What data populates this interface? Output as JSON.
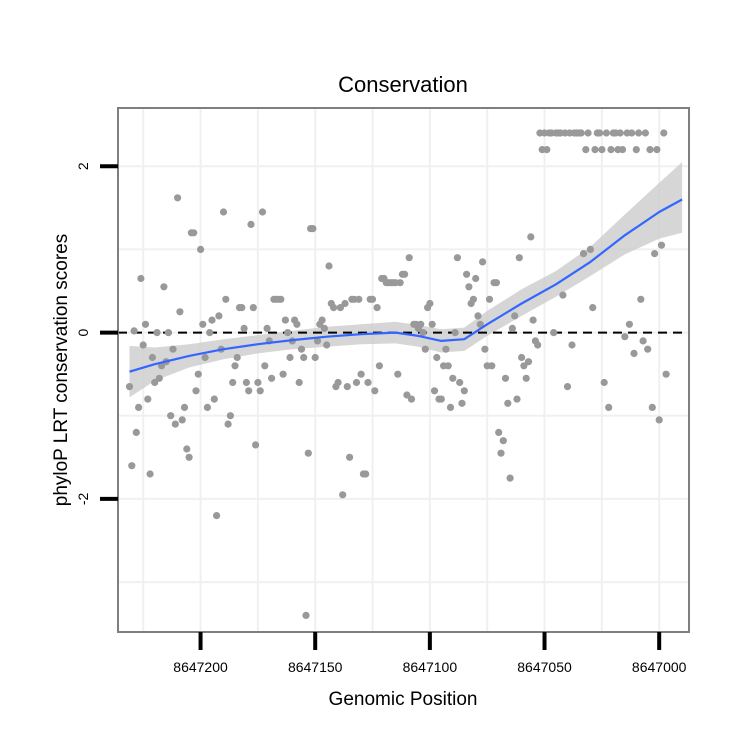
{
  "chart_data": {
    "type": "scatter",
    "title": "Conservation",
    "xlabel": "Genomic Position",
    "ylabel": "phyloP LRT conservation scores",
    "x_reversed": true,
    "xlim": [
      8647236,
      8646987
    ],
    "ylim": [
      -3.6,
      2.7
    ],
    "x_ticks": [
      8647200,
      8647150,
      8647100,
      8647050,
      8647000
    ],
    "x_tick_labels": [
      "8647200",
      "8647150",
      "8647100",
      "8647050",
      "8647000"
    ],
    "y_ticks": [
      2,
      0,
      -2
    ],
    "y_tick_labels": [
      "2",
      "0",
      "-2"
    ],
    "hline": 0,
    "colors": {
      "points": "#999999",
      "smooth": "#3366ff",
      "ribbon": "#cccccc",
      "panel_border": "#7f7f7f",
      "grid": "#f0f0f0"
    },
    "series": [
      {
        "name": "scores",
        "points": [
          [
            8647231,
            -0.65
          ],
          [
            8647230,
            -1.6
          ],
          [
            8647229,
            0.02
          ],
          [
            8647228,
            -1.2
          ],
          [
            8647227,
            -0.9
          ],
          [
            8647226,
            0.65
          ],
          [
            8647225,
            -0.15
          ],
          [
            8647224,
            0.1
          ],
          [
            8647223,
            -0.8
          ],
          [
            8647222,
            -1.7
          ],
          [
            8647221,
            -0.3
          ],
          [
            8647220,
            -0.6
          ],
          [
            8647219,
            0.0
          ],
          [
            8647218,
            -0.55
          ],
          [
            8647217,
            -0.4
          ],
          [
            8647216,
            0.55
          ],
          [
            8647215,
            -0.35
          ],
          [
            8647214,
            0.0
          ],
          [
            8647213,
            -1.0
          ],
          [
            8647212,
            -0.2
          ],
          [
            8647211,
            -1.1
          ],
          [
            8647210,
            1.62
          ],
          [
            8647209,
            0.25
          ],
          [
            8647208,
            -1.05
          ],
          [
            8647207,
            -0.9
          ],
          [
            8647206,
            -1.4
          ],
          [
            8647205,
            -1.5
          ],
          [
            8647204,
            1.2
          ],
          [
            8647203,
            1.2
          ],
          [
            8647202,
            -0.7
          ],
          [
            8647201,
            -0.5
          ],
          [
            8647200,
            1.0
          ],
          [
            8647199,
            0.1
          ],
          [
            8647198,
            -0.3
          ],
          [
            8647197,
            -0.9
          ],
          [
            8647196,
            0.0
          ],
          [
            8647195,
            0.15
          ],
          [
            8647194,
            -0.8
          ],
          [
            8647193,
            -2.2
          ],
          [
            8647192,
            0.2
          ],
          [
            8647191,
            -0.2
          ],
          [
            8647190,
            1.45
          ],
          [
            8647189,
            0.4
          ],
          [
            8647188,
            -1.1
          ],
          [
            8647187,
            -1.0
          ],
          [
            8647186,
            -0.6
          ],
          [
            8647185,
            -0.4
          ],
          [
            8647184,
            -0.3
          ],
          [
            8647183,
            0.3
          ],
          [
            8647182,
            0.3
          ],
          [
            8647181,
            0.05
          ],
          [
            8647180,
            -0.6
          ],
          [
            8647179,
            -0.7
          ],
          [
            8647178,
            1.3
          ],
          [
            8647177,
            0.3
          ],
          [
            8647176,
            -1.35
          ],
          [
            8647175,
            -0.6
          ],
          [
            8647174,
            -0.7
          ],
          [
            8647173,
            1.45
          ],
          [
            8647172,
            -0.4
          ],
          [
            8647171,
            0.05
          ],
          [
            8647170,
            -0.1
          ],
          [
            8647169,
            -0.55
          ],
          [
            8647168,
            0.4
          ],
          [
            8647167,
            0.4
          ],
          [
            8647166,
            0.4
          ],
          [
            8647165,
            0.4
          ],
          [
            8647164,
            -0.5
          ],
          [
            8647163,
            0.15
          ],
          [
            8647162,
            0.0
          ],
          [
            8647161,
            -0.3
          ],
          [
            8647160,
            -0.1
          ],
          [
            8647159,
            0.15
          ],
          [
            8647158,
            0.1
          ],
          [
            8647157,
            -0.6
          ],
          [
            8647156,
            -0.2
          ],
          [
            8647155,
            -0.3
          ],
          [
            8647154,
            -3.4
          ],
          [
            8647153,
            -1.45
          ],
          [
            8647152,
            1.25
          ],
          [
            8647151,
            1.25
          ],
          [
            8647150,
            -0.3
          ],
          [
            8647149,
            -0.1
          ],
          [
            8647148,
            0.1
          ],
          [
            8647147,
            0.15
          ],
          [
            8647146,
            0.05
          ],
          [
            8647145,
            -0.15
          ],
          [
            8647144,
            0.8
          ],
          [
            8647143,
            0.35
          ],
          [
            8647142,
            0.3
          ],
          [
            8647141,
            -0.65
          ],
          [
            8647140,
            -0.6
          ],
          [
            8647139,
            0.3
          ],
          [
            8647138,
            -1.95
          ],
          [
            8647137,
            0.35
          ],
          [
            8647136,
            -0.65
          ],
          [
            8647135,
            -1.5
          ],
          [
            8647134,
            0.4
          ],
          [
            8647133,
            0.4
          ],
          [
            8647132,
            -0.6
          ],
          [
            8647131,
            0.4
          ],
          [
            8647130,
            -0.5
          ],
          [
            8647129,
            -1.7
          ],
          [
            8647128,
            -1.7
          ],
          [
            8647127,
            -0.6
          ],
          [
            8647126,
            0.4
          ],
          [
            8647125,
            0.4
          ],
          [
            8647124,
            -0.7
          ],
          [
            8647123,
            0.3
          ],
          [
            8647122,
            -0.4
          ],
          [
            8647121,
            0.65
          ],
          [
            8647120,
            0.65
          ],
          [
            8647119,
            0.6
          ],
          [
            8647118,
            0.6
          ],
          [
            8647117,
            0.6
          ],
          [
            8647116,
            0.6
          ],
          [
            8647115,
            0.6
          ],
          [
            8647114,
            -0.5
          ],
          [
            8647113,
            0.6
          ],
          [
            8647112,
            0.7
          ],
          [
            8647111,
            0.7
          ],
          [
            8647110,
            -0.75
          ],
          [
            8647109,
            0.9
          ],
          [
            8647108,
            -0.8
          ],
          [
            8647107,
            0.1
          ],
          [
            8647106,
            0.1
          ],
          [
            8647105,
            0.05
          ],
          [
            8647104,
            0.1
          ],
          [
            8647103,
            0.0
          ],
          [
            8647102,
            -0.2
          ],
          [
            8647101,
            0.3
          ],
          [
            8647100,
            0.35
          ],
          [
            8647099,
            0.1
          ],
          [
            8647098,
            -0.7
          ],
          [
            8647097,
            -0.3
          ],
          [
            8647096,
            -0.8
          ],
          [
            8647095,
            -0.8
          ],
          [
            8647094,
            -0.4
          ],
          [
            8647093,
            -0.2
          ],
          [
            8647092,
            -0.4
          ],
          [
            8647091,
            -0.9
          ],
          [
            8647090,
            -0.55
          ],
          [
            8647089,
            0.0
          ],
          [
            8647088,
            0.9
          ],
          [
            8647087,
            -0.6
          ],
          [
            8647086,
            -0.85
          ],
          [
            8647085,
            -0.7
          ],
          [
            8647084,
            0.7
          ],
          [
            8647083,
            0.55
          ],
          [
            8647082,
            0.35
          ],
          [
            8647081,
            0.4
          ],
          [
            8647080,
            0.65
          ],
          [
            8647079,
            0.2
          ],
          [
            8647078,
            0.1
          ],
          [
            8647077,
            0.85
          ],
          [
            8647076,
            -0.2
          ],
          [
            8647075,
            -0.4
          ],
          [
            8647074,
            0.4
          ],
          [
            8647073,
            -0.4
          ],
          [
            8647072,
            0.6
          ],
          [
            8647071,
            0.6
          ],
          [
            8647070,
            -1.2
          ],
          [
            8647069,
            -1.45
          ],
          [
            8647068,
            -1.3
          ],
          [
            8647067,
            -0.55
          ],
          [
            8647066,
            -0.85
          ],
          [
            8647065,
            -1.75
          ],
          [
            8647064,
            0.05
          ],
          [
            8647063,
            0.2
          ],
          [
            8647062,
            -0.8
          ],
          [
            8647061,
            0.9
          ],
          [
            8647060,
            -0.3
          ],
          [
            8647059,
            -0.4
          ],
          [
            8647058,
            -0.55
          ],
          [
            8647057,
            -0.35
          ],
          [
            8647056,
            1.15
          ],
          [
            8647055,
            0.15
          ],
          [
            8647054,
            -0.1
          ],
          [
            8647053,
            -0.15
          ],
          [
            8647052,
            2.4
          ],
          [
            8647051,
            2.2
          ],
          [
            8647050,
            2.4
          ],
          [
            8647049,
            2.2
          ],
          [
            8647048,
            2.4
          ],
          [
            8647047,
            2.4
          ],
          [
            8647046,
            0.0
          ],
          [
            8647045,
            2.4
          ],
          [
            8647044,
            2.4
          ],
          [
            8647043,
            2.4
          ],
          [
            8647042,
            0.45
          ],
          [
            8647041,
            2.4
          ],
          [
            8647040,
            -0.65
          ],
          [
            8647039,
            2.4
          ],
          [
            8647038,
            -0.15
          ],
          [
            8647037,
            2.4
          ],
          [
            8647036,
            2.4
          ],
          [
            8647035,
            2.4
          ],
          [
            8647034,
            2.4
          ],
          [
            8647033,
            0.95
          ],
          [
            8647032,
            2.2
          ],
          [
            8647031,
            2.4
          ],
          [
            8647030,
            1.0
          ],
          [
            8647029,
            0.3
          ],
          [
            8647028,
            2.2
          ],
          [
            8647027,
            2.4
          ],
          [
            8647026,
            2.4
          ],
          [
            8647025,
            2.2
          ],
          [
            8647024,
            -0.6
          ],
          [
            8647023,
            2.4
          ],
          [
            8647022,
            -0.9
          ],
          [
            8647021,
            2.2
          ],
          [
            8647020,
            2.4
          ],
          [
            8647019,
            2.4
          ],
          [
            8647018,
            2.2
          ],
          [
            8647017,
            2.4
          ],
          [
            8647016,
            2.2
          ],
          [
            8647015,
            -0.05
          ],
          [
            8647014,
            2.4
          ],
          [
            8647013,
            0.1
          ],
          [
            8647012,
            2.4
          ],
          [
            8647011,
            -0.25
          ],
          [
            8647010,
            2.2
          ],
          [
            8647009,
            2.4
          ],
          [
            8647008,
            0.4
          ],
          [
            8647007,
            -0.1
          ],
          [
            8647006,
            2.4
          ],
          [
            8647005,
            -0.2
          ],
          [
            8647004,
            2.2
          ],
          [
            8647003,
            -0.9
          ],
          [
            8647002,
            0.95
          ],
          [
            8647001,
            2.2
          ],
          [
            8647000,
            -1.05
          ],
          [
            8646999,
            1.05
          ],
          [
            8646998,
            2.4
          ],
          [
            8646997,
            -0.5
          ]
        ]
      }
    ],
    "smooth": [
      {
        "x": 8647231,
        "y": -0.47,
        "lo": -0.78,
        "hi": -0.16
      },
      {
        "x": 8647220,
        "y": -0.38,
        "lo": -0.58,
        "hi": -0.18
      },
      {
        "x": 8647205,
        "y": -0.28,
        "lo": -0.42,
        "hi": -0.14
      },
      {
        "x": 8647190,
        "y": -0.2,
        "lo": -0.32,
        "hi": -0.08
      },
      {
        "x": 8647175,
        "y": -0.14,
        "lo": -0.25,
        "hi": -0.03
      },
      {
        "x": 8647160,
        "y": -0.09,
        "lo": -0.2,
        "hi": 0.02
      },
      {
        "x": 8647145,
        "y": -0.05,
        "lo": -0.17,
        "hi": 0.07
      },
      {
        "x": 8647130,
        "y": -0.02,
        "lo": -0.14,
        "hi": 0.1
      },
      {
        "x": 8647115,
        "y": 0.0,
        "lo": -0.13,
        "hi": 0.13
      },
      {
        "x": 8647105,
        "y": -0.04,
        "lo": -0.17,
        "hi": 0.09
      },
      {
        "x": 8647095,
        "y": -0.1,
        "lo": -0.24,
        "hi": 0.04
      },
      {
        "x": 8647085,
        "y": -0.08,
        "lo": -0.22,
        "hi": 0.06
      },
      {
        "x": 8647075,
        "y": 0.1,
        "lo": -0.04,
        "hi": 0.26
      },
      {
        "x": 8647060,
        "y": 0.35,
        "lo": 0.2,
        "hi": 0.52
      },
      {
        "x": 8647045,
        "y": 0.58,
        "lo": 0.43,
        "hi": 0.74
      },
      {
        "x": 8647030,
        "y": 0.85,
        "lo": 0.68,
        "hi": 1.03
      },
      {
        "x": 8647015,
        "y": 1.17,
        "lo": 0.94,
        "hi": 1.42
      },
      {
        "x": 8647000,
        "y": 1.45,
        "lo": 1.13,
        "hi": 1.8
      },
      {
        "x": 8646990,
        "y": 1.6,
        "lo": 1.2,
        "hi": 2.05
      }
    ]
  }
}
